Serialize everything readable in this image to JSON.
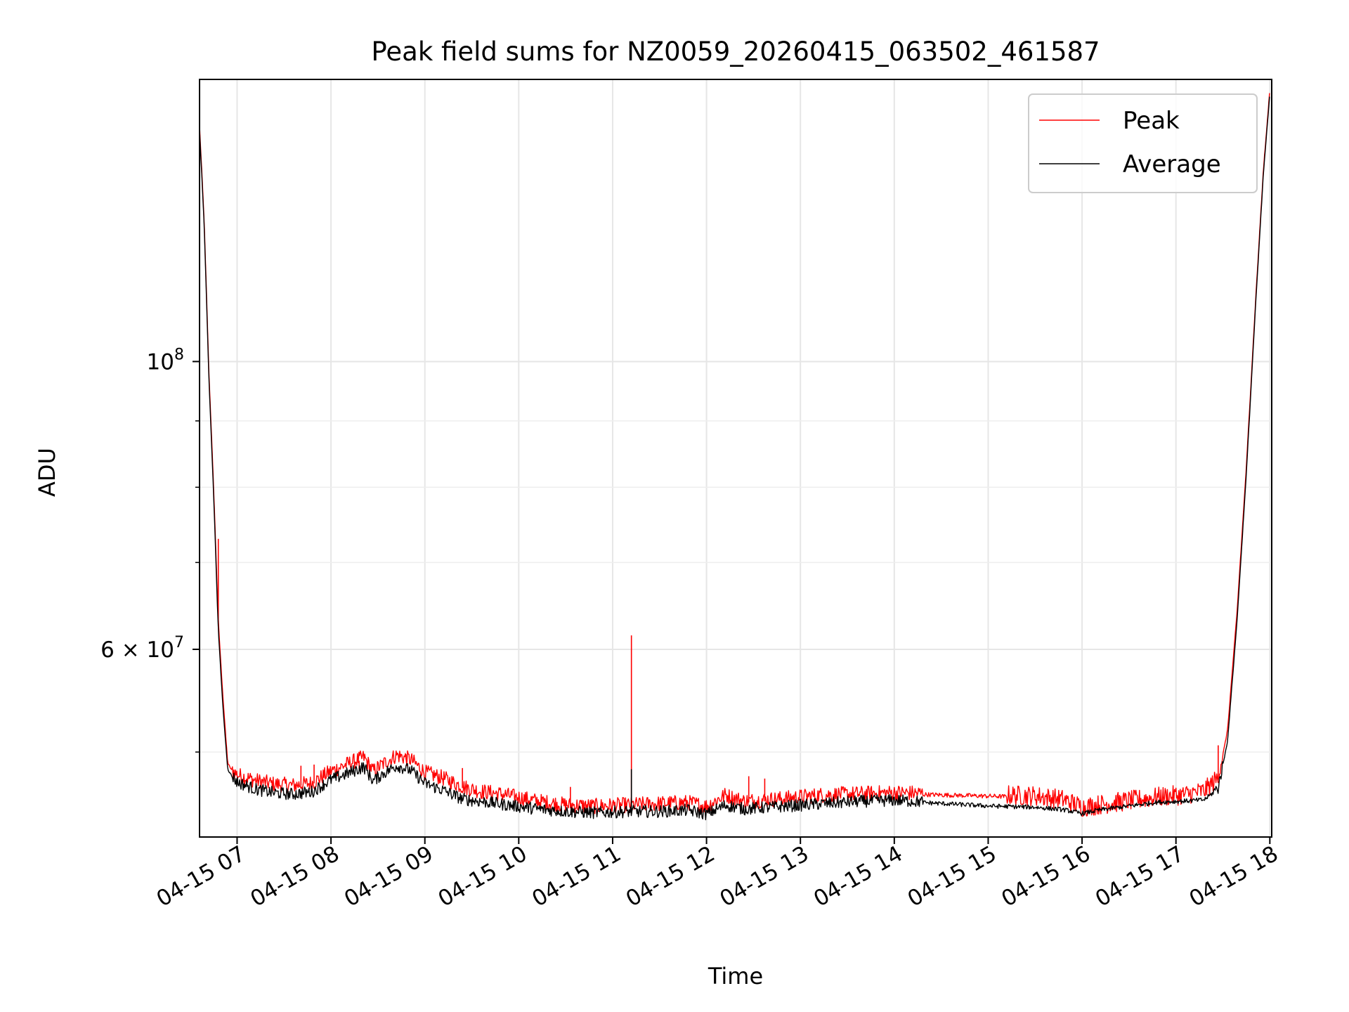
{
  "chart_data": {
    "type": "line",
    "title": "Peak field sums for NZ0059_20260415_063502_461587",
    "xlabel": "Time",
    "ylabel": "ADU",
    "yscale": "log",
    "ylim": [
      43000000,
      165000000
    ],
    "xlim_hours": [
      6.6,
      18.02
    ],
    "grid": true,
    "legend_position": "top-right",
    "x_ticks": [
      {
        "hour": 7,
        "label": "04-15 07"
      },
      {
        "hour": 8,
        "label": "04-15 08"
      },
      {
        "hour": 9,
        "label": "04-15 09"
      },
      {
        "hour": 10,
        "label": "04-15 10"
      },
      {
        "hour": 11,
        "label": "04-15 11"
      },
      {
        "hour": 12,
        "label": "04-15 12"
      },
      {
        "hour": 13,
        "label": "04-15 13"
      },
      {
        "hour": 14,
        "label": "04-15 14"
      },
      {
        "hour": 15,
        "label": "04-15 15"
      },
      {
        "hour": 16,
        "label": "04-15 16"
      },
      {
        "hour": 17,
        "label": "04-15 17"
      },
      {
        "hour": 18,
        "label": "04-15 18"
      }
    ],
    "y_major_ticks": [
      {
        "value": 100000000,
        "base": "10",
        "exp": "8"
      },
      {
        "value": 60000000,
        "base": "6 × 10",
        "exp": "7"
      }
    ],
    "y_minor_ticks": [
      50000000,
      70000000,
      80000000,
      90000000
    ],
    "series": [
      {
        "name": "Peak",
        "color": "#ff0000",
        "points": [
          [
            6.6,
            152000000
          ],
          [
            6.65,
            128000000
          ],
          [
            6.7,
            98000000
          ],
          [
            6.75,
            80000000
          ],
          [
            6.8,
            63000000
          ],
          [
            6.85,
            55000000
          ],
          [
            6.9,
            49000000
          ],
          [
            6.95,
            48300000
          ],
          [
            7.0,
            47900000
          ],
          [
            7.2,
            47400000
          ],
          [
            7.4,
            47100000
          ],
          [
            7.6,
            47000000
          ],
          [
            7.8,
            47200000
          ],
          [
            8.0,
            48200000
          ],
          [
            8.2,
            48900000
          ],
          [
            8.35,
            49400000
          ],
          [
            8.45,
            48200000
          ],
          [
            8.55,
            48800000
          ],
          [
            8.7,
            49600000
          ],
          [
            8.85,
            49200000
          ],
          [
            9.0,
            48100000
          ],
          [
            9.2,
            47600000
          ],
          [
            9.4,
            46900000
          ],
          [
            9.6,
            46500000
          ],
          [
            9.8,
            46300000
          ],
          [
            10.0,
            46000000
          ],
          [
            10.2,
            45700000
          ],
          [
            10.5,
            45400000
          ],
          [
            10.8,
            45300000
          ],
          [
            11.2,
            45400000
          ],
          [
            11.5,
            45500000
          ],
          [
            11.8,
            45600000
          ],
          [
            12.0,
            45300000
          ],
          [
            12.2,
            46200000
          ],
          [
            12.4,
            45700000
          ],
          [
            12.8,
            45900000
          ],
          [
            13.2,
            46200000
          ],
          [
            13.6,
            46300000
          ],
          [
            14.0,
            46400000
          ],
          [
            14.5,
            46300000
          ],
          [
            15.0,
            46200000
          ],
          [
            15.5,
            46100000
          ],
          [
            15.8,
            45800000
          ],
          [
            16.0,
            45200000
          ],
          [
            16.2,
            45400000
          ],
          [
            16.5,
            45700000
          ],
          [
            16.8,
            46000000
          ],
          [
            17.1,
            46200000
          ],
          [
            17.3,
            46500000
          ],
          [
            17.45,
            47600000
          ],
          [
            17.55,
            52000000
          ],
          [
            17.65,
            64000000
          ],
          [
            17.75,
            83000000
          ],
          [
            17.85,
            112000000
          ],
          [
            17.93,
            140000000
          ],
          [
            18.0,
            162000000
          ]
        ],
        "spikes": [
          [
            6.8,
            73000000
          ],
          [
            7.68,
            48800000
          ],
          [
            7.82,
            48900000
          ],
          [
            8.3,
            48500000
          ],
          [
            8.8,
            49800000
          ],
          [
            9.4,
            48600000
          ],
          [
            10.55,
            47000000
          ],
          [
            11.2,
            61500000
          ],
          [
            12.45,
            47900000
          ],
          [
            12.62,
            47700000
          ],
          [
            17.45,
            50600000
          ]
        ]
      },
      {
        "name": "Average",
        "color": "#000000",
        "points": [
          [
            6.6,
            151000000
          ],
          [
            6.65,
            127000000
          ],
          [
            6.7,
            97000000
          ],
          [
            6.75,
            79000000
          ],
          [
            6.8,
            62000000
          ],
          [
            6.85,
            54000000
          ],
          [
            6.9,
            48500000
          ],
          [
            6.95,
            47800000
          ],
          [
            7.0,
            47300000
          ],
          [
            7.2,
            46700000
          ],
          [
            7.4,
            46400000
          ],
          [
            7.6,
            46300000
          ],
          [
            7.8,
            46500000
          ],
          [
            8.0,
            47500000
          ],
          [
            8.2,
            48100000
          ],
          [
            8.35,
            48600000
          ],
          [
            8.45,
            47400000
          ],
          [
            8.55,
            48000000
          ],
          [
            8.7,
            48700000
          ],
          [
            8.85,
            48300000
          ],
          [
            9.0,
            47200000
          ],
          [
            9.2,
            46600000
          ],
          [
            9.4,
            45900000
          ],
          [
            9.6,
            45700000
          ],
          [
            9.8,
            45500000
          ],
          [
            10.0,
            45300000
          ],
          [
            10.2,
            45100000
          ],
          [
            10.5,
            44900000
          ],
          [
            10.8,
            44800000
          ],
          [
            11.2,
            44900000
          ],
          [
            11.5,
            44900000
          ],
          [
            11.8,
            45000000
          ],
          [
            12.0,
            44700000
          ],
          [
            12.2,
            45400000
          ],
          [
            12.4,
            45100000
          ],
          [
            12.8,
            45300000
          ],
          [
            13.2,
            45500000
          ],
          [
            13.6,
            45700000
          ],
          [
            14.0,
            45800000
          ],
          [
            14.5,
            45600000
          ],
          [
            15.0,
            45400000
          ],
          [
            15.5,
            45300000
          ],
          [
            15.8,
            45100000
          ],
          [
            16.0,
            44800000
          ],
          [
            16.2,
            45100000
          ],
          [
            16.5,
            45400000
          ],
          [
            16.8,
            45700000
          ],
          [
            17.1,
            45800000
          ],
          [
            17.3,
            45900000
          ],
          [
            17.45,
            46800000
          ],
          [
            17.55,
            51000000
          ],
          [
            17.65,
            63000000
          ],
          [
            17.75,
            82000000
          ],
          [
            17.85,
            111000000
          ],
          [
            17.93,
            139000000
          ],
          [
            18.0,
            161000000
          ]
        ],
        "spikes": [
          [
            11.2,
            48500000
          ]
        ]
      }
    ]
  }
}
